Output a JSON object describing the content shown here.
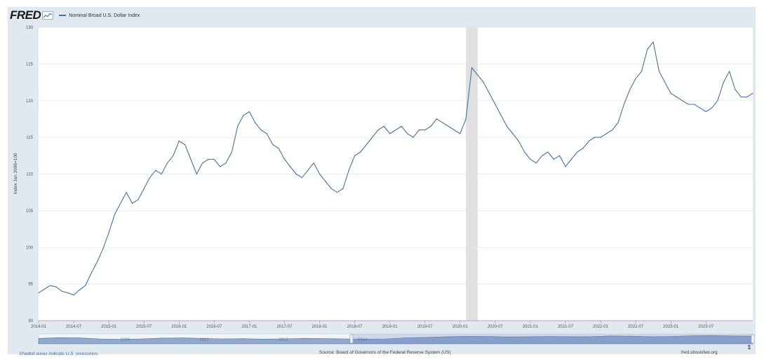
{
  "header": {
    "logo_text": "FRED",
    "series_label": "Nominal Broad U.S. Dollar Index"
  },
  "footer": {
    "recession_note": "Shaded areas indicate U.S. recessions.",
    "source": "Source: Board of Governors of the Federal Reserve System (US)",
    "site": "fred.stlouisfed.org"
  },
  "colors": {
    "line": "#4572a7",
    "frame": "#e1e9f0",
    "recession": "#e0e0e0",
    "navigator_fill": "#93a9c9",
    "navigator_line": "#4572a7"
  },
  "icons": {
    "resize": "resize-arrows-icon",
    "logo_graph": "fred-graph-icon"
  },
  "chart_data": {
    "type": "line",
    "title": "Nominal Broad U.S. Dollar Index",
    "ylabel": "Index Jan 2006=100",
    "xlabel": "",
    "ylim": [
      90,
      130
    ],
    "xlim": [
      "2014-01",
      "2024-03"
    ],
    "y_ticks": [
      90,
      95,
      100,
      105,
      110,
      115,
      120,
      125,
      130
    ],
    "x_ticks": [
      "2014-01",
      "2014-07",
      "2015-01",
      "2015-07",
      "2016-01",
      "2016-07",
      "2017-01",
      "2017-07",
      "2018-01",
      "2018-07",
      "2019-01",
      "2019-07",
      "2020-01",
      "2020-07",
      "2021-01",
      "2021-07",
      "2022-01",
      "2022-07",
      "2023-01",
      "2023-07"
    ],
    "recessions": [
      [
        "2020-02",
        "2020-04"
      ]
    ],
    "navigator_labels": [
      "2008",
      "2010",
      "2012",
      "2014"
    ],
    "series": [
      {
        "name": "Nominal Broad U.S. Dollar Index",
        "x": [
          "2014-01",
          "2014-02",
          "2014-03",
          "2014-04",
          "2014-05",
          "2014-06",
          "2014-07",
          "2014-08",
          "2014-09",
          "2014-10",
          "2014-11",
          "2014-12",
          "2015-01",
          "2015-02",
          "2015-03",
          "2015-04",
          "2015-05",
          "2015-06",
          "2015-07",
          "2015-08",
          "2015-09",
          "2015-10",
          "2015-11",
          "2015-12",
          "2016-01",
          "2016-02",
          "2016-03",
          "2016-04",
          "2016-05",
          "2016-06",
          "2016-07",
          "2016-08",
          "2016-09",
          "2016-10",
          "2016-11",
          "2016-12",
          "2017-01",
          "2017-02",
          "2017-03",
          "2017-04",
          "2017-05",
          "2017-06",
          "2017-07",
          "2017-08",
          "2017-09",
          "2017-10",
          "2017-11",
          "2017-12",
          "2018-01",
          "2018-02",
          "2018-03",
          "2018-04",
          "2018-05",
          "2018-06",
          "2018-07",
          "2018-08",
          "2018-09",
          "2018-10",
          "2018-11",
          "2018-12",
          "2019-01",
          "2019-02",
          "2019-03",
          "2019-04",
          "2019-05",
          "2019-06",
          "2019-07",
          "2019-08",
          "2019-09",
          "2019-10",
          "2019-11",
          "2019-12",
          "2020-01",
          "2020-02",
          "2020-03",
          "2020-04",
          "2020-05",
          "2020-06",
          "2020-07",
          "2020-08",
          "2020-09",
          "2020-10",
          "2020-11",
          "2020-12",
          "2021-01",
          "2021-02",
          "2021-03",
          "2021-04",
          "2021-05",
          "2021-06",
          "2021-07",
          "2021-08",
          "2021-09",
          "2021-10",
          "2021-11",
          "2021-12",
          "2022-01",
          "2022-02",
          "2022-03",
          "2022-04",
          "2022-05",
          "2022-06",
          "2022-07",
          "2022-08",
          "2022-09",
          "2022-10",
          "2022-11",
          "2022-12",
          "2023-01",
          "2023-02",
          "2023-03",
          "2023-04",
          "2023-05",
          "2023-06",
          "2023-07",
          "2023-08",
          "2023-09",
          "2023-10",
          "2023-11",
          "2023-12",
          "2024-01",
          "2024-02",
          "2024-03"
        ],
        "values": [
          93.8,
          94.3,
          94.8,
          94.6,
          94.0,
          93.8,
          93.5,
          94.2,
          94.8,
          96.5,
          98.0,
          99.8,
          102.0,
          104.5,
          106.0,
          107.5,
          106.0,
          106.5,
          108.0,
          109.5,
          110.5,
          110.0,
          111.5,
          112.5,
          114.5,
          114.0,
          112.0,
          110.0,
          111.5,
          112.0,
          112.0,
          111.0,
          111.5,
          113.0,
          116.5,
          118.0,
          118.5,
          117.0,
          116.0,
          115.5,
          114.0,
          113.5,
          112.0,
          111.0,
          110.0,
          109.5,
          110.5,
          111.5,
          110.0,
          109.0,
          108.0,
          107.5,
          108.0,
          110.5,
          112.5,
          113.0,
          114.0,
          115.0,
          116.0,
          116.5,
          115.5,
          116.0,
          116.5,
          115.5,
          115.0,
          116.0,
          116.0,
          116.5,
          117.5,
          117.0,
          116.5,
          116.0,
          115.5,
          117.5,
          124.5,
          123.5,
          122.5,
          121.0,
          119.5,
          118.0,
          116.5,
          115.5,
          114.5,
          113.0,
          112.0,
          111.5,
          112.5,
          113.0,
          112.0,
          112.5,
          111.0,
          112.0,
          113.0,
          113.5,
          114.5,
          115.0,
          115.0,
          115.5,
          116.0,
          117.0,
          119.5,
          121.5,
          123.0,
          124.0,
          127.0,
          128.0,
          124.0,
          122.5,
          121.0,
          120.5,
          120.0,
          119.5,
          119.5,
          119.0,
          118.5,
          119.0,
          120.0,
          122.5,
          124.0,
          121.5,
          120.5,
          120.5,
          121.0
        ]
      }
    ]
  }
}
